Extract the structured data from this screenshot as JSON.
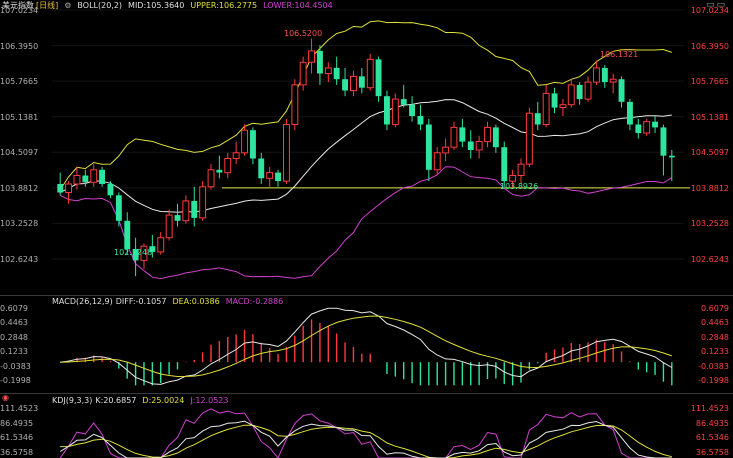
{
  "main_header": {
    "symbol": "美元指数",
    "period": "[日线]",
    "indicator": "BOLL(20,2)",
    "mid": "MID:105.3640",
    "upper": "UPPER:106.2775",
    "lower": "LOWER:104.4504",
    "window_buttons": "▭▭"
  },
  "macd_header": {
    "name": "MACD(26,12,9)",
    "diff": "DIFF:-0.1057",
    "dea": "DEA:0.0386",
    "macd": "MACD:-0.2886"
  },
  "kdj_header": {
    "icon": "◉",
    "name": "KDJ(9,3,3)",
    "k": "K:20.6857",
    "d": "D:25.0024",
    "j": "J:12.0523"
  },
  "price_axis": [
    "107.0234",
    "106.3950",
    "105.7665",
    "105.1381",
    "104.5097",
    "103.8812",
    "103.2528",
    "102.6243"
  ],
  "macd_axis": [
    "0.6079",
    "0.4463",
    "0.2848",
    "0.1233",
    "-0.0383",
    "-0.1998"
  ],
  "kdj_axis": [
    "111.4523",
    "86.4935",
    "61.5346",
    "36.5758"
  ],
  "annotations": {
    "high": "106.5200",
    "low_left": "102.3248",
    "low_mid": "103.8926",
    "high_right": "106.1321"
  },
  "colors": {
    "up": "#ff3b3b",
    "down": "#2ee5a0",
    "boll_mid": "#e8e8e8",
    "boll_upper": "#e0e03a",
    "boll_lower": "#d040d0",
    "support_line": "#e8e84a",
    "axis_text": "#ff4040",
    "grid": "#333333"
  },
  "chart_data": [
    {
      "type": "candlestick",
      "title": "美元指数 [日线]",
      "indicator": "BOLL(20,2)",
      "ylim": [
        102.3,
        107.05
      ],
      "support_level": 103.8812,
      "candles": [
        {
          "o": 103.95,
          "h": 104.15,
          "l": 103.75,
          "c": 103.8
        },
        {
          "o": 103.8,
          "h": 104.0,
          "l": 103.6,
          "c": 103.95
        },
        {
          "o": 103.95,
          "h": 104.25,
          "l": 103.85,
          "c": 104.1
        },
        {
          "o": 104.1,
          "h": 104.2,
          "l": 103.9,
          "c": 103.98
        },
        {
          "o": 103.98,
          "h": 104.3,
          "l": 103.9,
          "c": 104.2
        },
        {
          "o": 104.2,
          "h": 104.25,
          "l": 103.9,
          "c": 103.95
        },
        {
          "o": 103.95,
          "h": 104.0,
          "l": 103.7,
          "c": 103.75
        },
        {
          "o": 103.75,
          "h": 103.8,
          "l": 103.2,
          "c": 103.3
        },
        {
          "o": 103.3,
          "h": 103.45,
          "l": 102.7,
          "c": 102.8
        },
        {
          "o": 102.8,
          "h": 103.0,
          "l": 102.32,
          "c": 102.6
        },
        {
          "o": 102.6,
          "h": 102.9,
          "l": 102.45,
          "c": 102.85
        },
        {
          "o": 102.85,
          "h": 103.05,
          "l": 102.65,
          "c": 102.75
        },
        {
          "o": 102.75,
          "h": 103.1,
          "l": 102.7,
          "c": 103.0
        },
        {
          "o": 103.0,
          "h": 103.5,
          "l": 102.95,
          "c": 103.4
        },
        {
          "o": 103.4,
          "h": 103.6,
          "l": 103.2,
          "c": 103.3
        },
        {
          "o": 103.3,
          "h": 103.75,
          "l": 103.25,
          "c": 103.65
        },
        {
          "o": 103.65,
          "h": 103.9,
          "l": 103.2,
          "c": 103.35
        },
        {
          "o": 103.35,
          "h": 104.0,
          "l": 103.3,
          "c": 103.9
        },
        {
          "o": 103.9,
          "h": 104.3,
          "l": 103.85,
          "c": 104.2
        },
        {
          "o": 104.2,
          "h": 104.45,
          "l": 104.05,
          "c": 104.15
        },
        {
          "o": 104.15,
          "h": 104.5,
          "l": 104.05,
          "c": 104.4
        },
        {
          "o": 104.4,
          "h": 104.7,
          "l": 104.3,
          "c": 104.5
        },
        {
          "o": 104.5,
          "h": 105.0,
          "l": 104.45,
          "c": 104.9
        },
        {
          "o": 104.9,
          "h": 104.95,
          "l": 104.3,
          "c": 104.4
        },
        {
          "o": 104.4,
          "h": 104.5,
          "l": 103.95,
          "c": 104.05
        },
        {
          "o": 104.05,
          "h": 104.25,
          "l": 103.9,
          "c": 104.15
        },
        {
          "o": 104.15,
          "h": 104.2,
          "l": 103.9,
          "c": 104.0
        },
        {
          "o": 104.0,
          "h": 105.1,
          "l": 103.95,
          "c": 105.0
        },
        {
          "o": 105.0,
          "h": 105.8,
          "l": 104.9,
          "c": 105.7
        },
        {
          "o": 105.7,
          "h": 106.2,
          "l": 105.6,
          "c": 106.1
        },
        {
          "o": 106.1,
          "h": 106.52,
          "l": 105.9,
          "c": 106.3
        },
        {
          "o": 106.3,
          "h": 106.4,
          "l": 105.7,
          "c": 105.9
        },
        {
          "o": 105.9,
          "h": 106.1,
          "l": 105.75,
          "c": 106.0
        },
        {
          "o": 106.0,
          "h": 106.2,
          "l": 105.7,
          "c": 105.8
        },
        {
          "o": 105.8,
          "h": 106.0,
          "l": 105.5,
          "c": 105.6
        },
        {
          "o": 105.6,
          "h": 105.95,
          "l": 105.5,
          "c": 105.85
        },
        {
          "o": 105.85,
          "h": 106.0,
          "l": 105.55,
          "c": 105.65
        },
        {
          "o": 105.65,
          "h": 106.25,
          "l": 105.6,
          "c": 106.15
        },
        {
          "o": 106.15,
          "h": 106.2,
          "l": 105.4,
          "c": 105.5
        },
        {
          "o": 105.5,
          "h": 105.6,
          "l": 104.9,
          "c": 105.0
        },
        {
          "o": 105.0,
          "h": 105.55,
          "l": 104.95,
          "c": 105.45
        },
        {
          "o": 105.45,
          "h": 105.7,
          "l": 105.3,
          "c": 105.35
        },
        {
          "o": 105.35,
          "h": 105.5,
          "l": 105.05,
          "c": 105.15
        },
        {
          "o": 105.15,
          "h": 105.35,
          "l": 104.9,
          "c": 105.0
        },
        {
          "o": 105.0,
          "h": 105.1,
          "l": 104.0,
          "c": 104.2
        },
        {
          "o": 104.2,
          "h": 104.6,
          "l": 104.1,
          "c": 104.5
        },
        {
          "o": 104.5,
          "h": 104.75,
          "l": 104.35,
          "c": 104.6
        },
        {
          "o": 104.6,
          "h": 105.05,
          "l": 104.55,
          "c": 104.95
        },
        {
          "o": 104.95,
          "h": 105.1,
          "l": 104.6,
          "c": 104.7
        },
        {
          "o": 104.7,
          "h": 104.9,
          "l": 104.4,
          "c": 104.55
        },
        {
          "o": 104.55,
          "h": 104.8,
          "l": 104.4,
          "c": 104.7
        },
        {
          "o": 104.7,
          "h": 105.05,
          "l": 104.6,
          "c": 104.95
        },
        {
          "o": 104.95,
          "h": 105.0,
          "l": 104.5,
          "c": 104.6
        },
        {
          "o": 104.6,
          "h": 104.7,
          "l": 103.9,
          "c": 104.0
        },
        {
          "o": 104.0,
          "h": 104.2,
          "l": 103.89,
          "c": 104.1
        },
        {
          "o": 104.1,
          "h": 104.4,
          "l": 103.95,
          "c": 104.3
        },
        {
          "o": 104.3,
          "h": 105.3,
          "l": 104.25,
          "c": 105.2
        },
        {
          "o": 105.2,
          "h": 105.4,
          "l": 104.9,
          "c": 105.0
        },
        {
          "o": 105.0,
          "h": 105.7,
          "l": 104.95,
          "c": 105.55
        },
        {
          "o": 105.55,
          "h": 105.65,
          "l": 105.2,
          "c": 105.3
        },
        {
          "o": 105.3,
          "h": 105.45,
          "l": 105.15,
          "c": 105.35
        },
        {
          "o": 105.35,
          "h": 105.8,
          "l": 105.3,
          "c": 105.7
        },
        {
          "o": 105.7,
          "h": 105.75,
          "l": 105.35,
          "c": 105.45
        },
        {
          "o": 105.45,
          "h": 105.85,
          "l": 105.4,
          "c": 105.75
        },
        {
          "o": 105.75,
          "h": 106.13,
          "l": 105.7,
          "c": 106.0
        },
        {
          "o": 106.0,
          "h": 106.05,
          "l": 105.65,
          "c": 105.75
        },
        {
          "o": 105.75,
          "h": 105.9,
          "l": 105.55,
          "c": 105.8
        },
        {
          "o": 105.8,
          "h": 105.85,
          "l": 105.3,
          "c": 105.4
        },
        {
          "o": 105.4,
          "h": 105.45,
          "l": 104.9,
          "c": 105.0
        },
        {
          "o": 105.0,
          "h": 105.1,
          "l": 104.75,
          "c": 104.85
        },
        {
          "o": 104.85,
          "h": 105.1,
          "l": 104.8,
          "c": 105.05
        },
        {
          "o": 105.05,
          "h": 105.15,
          "l": 104.85,
          "c": 104.95
        },
        {
          "o": 104.95,
          "h": 105.0,
          "l": 104.1,
          "c": 104.45
        },
        {
          "o": 104.45,
          "h": 104.55,
          "l": 104.0,
          "c": 104.42
        }
      ]
    },
    {
      "type": "bar+line",
      "title": "MACD(26,12,9)",
      "ylim": [
        -0.26,
        0.64
      ],
      "series": [
        {
          "name": "DIFF"
        },
        {
          "name": "DEA"
        },
        {
          "name": "MACD"
        }
      ]
    },
    {
      "type": "line",
      "title": "KDJ(9,3,3)",
      "ylim": [
        20,
        125
      ],
      "series": [
        {
          "name": "K"
        },
        {
          "name": "D"
        },
        {
          "name": "J"
        }
      ]
    }
  ]
}
